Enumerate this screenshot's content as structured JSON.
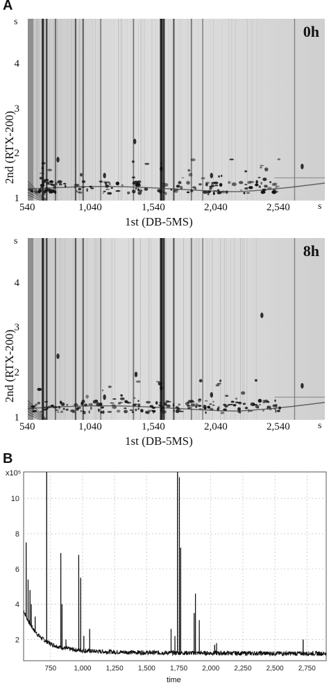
{
  "panel_a_label": "A",
  "panel_b_label": "B",
  "chart_data": [
    {
      "type": "heatmap",
      "panel": "A",
      "timepoint": "0h",
      "xlabel": "1st (DB-5MS)",
      "ylabel": "2nd (RTX-200)",
      "x_unit": "s",
      "y_unit": "s",
      "xlim": [
        540,
        2900
      ],
      "ylim": [
        1,
        5
      ],
      "x_ticks": [
        "540",
        "1,040",
        "1,540",
        "2,040",
        "2,540"
      ],
      "y_ticks": [
        "1",
        "2",
        "3",
        "4"
      ],
      "streaks": [
        [
          660,
          0.9
        ],
        [
          690,
          0.6
        ],
        [
          760,
          0.35
        ],
        [
          920,
          0.5
        ],
        [
          980,
          0.45
        ],
        [
          1120,
          0.25
        ],
        [
          1380,
          0.3
        ],
        [
          1600,
          1.0
        ],
        [
          1620,
          0.85
        ],
        [
          1700,
          0.5
        ],
        [
          1840,
          0.3
        ],
        [
          1930,
          0.2
        ],
        [
          2660,
          0.15
        ]
      ],
      "spots": [
        [
          1390,
          2.3
        ],
        [
          1600,
          1.7
        ],
        [
          2720,
          1.75
        ],
        [
          2000,
          1.55
        ],
        [
          1150,
          1.55
        ],
        [
          780,
          1.9
        ]
      ]
    },
    {
      "type": "heatmap",
      "panel": "A",
      "timepoint": "8h",
      "xlabel": "1st (DB-5MS)",
      "ylabel": "2nd (RTX-200)",
      "x_unit": "s",
      "y_unit": "s",
      "xlim": [
        540,
        2900
      ],
      "ylim": [
        1,
        5
      ],
      "x_ticks": [
        "540",
        "1,040",
        "1,540",
        "2,040",
        "2,540"
      ],
      "y_ticks": [
        "1",
        "2",
        "3",
        "4"
      ],
      "streaks": [
        [
          660,
          0.9
        ],
        [
          690,
          0.6
        ],
        [
          760,
          0.35
        ],
        [
          920,
          0.5
        ],
        [
          980,
          0.45
        ],
        [
          1120,
          0.25
        ],
        [
          1380,
          0.3
        ],
        [
          1600,
          1.0
        ],
        [
          1620,
          0.85
        ],
        [
          1700,
          0.5
        ],
        [
          1840,
          0.3
        ],
        [
          1930,
          0.2
        ],
        [
          2660,
          0.15
        ]
      ],
      "spots": [
        [
          1400,
          2.0
        ],
        [
          1600,
          1.7
        ],
        [
          2720,
          1.75
        ],
        [
          2000,
          1.55
        ],
        [
          1150,
          1.5
        ],
        [
          780,
          2.4
        ],
        [
          2400,
          3.3
        ]
      ]
    },
    {
      "type": "line",
      "panel": "B",
      "xlabel": "time",
      "ylabel": "",
      "y_scale_label": "x10⁵",
      "xlim": [
        540,
        2900
      ],
      "ylim": [
        0.8,
        11.5
      ],
      "x_ticks": [
        750,
        1000,
        1250,
        1500,
        1750,
        2000,
        2250,
        2500,
        2750
      ],
      "x_tick_labels": [
        "750",
        "1,000",
        "1,250",
        "1,500",
        "1,750",
        "2,000",
        "2,250",
        "2,500",
        "2,750"
      ],
      "y_ticks": [
        2,
        4,
        6,
        8,
        10
      ],
      "peaks": [
        [
          560,
          7.5
        ],
        [
          575,
          5.4
        ],
        [
          590,
          4.8
        ],
        [
          600,
          4.0
        ],
        [
          630,
          3.3
        ],
        [
          720,
          11.5
        ],
        [
          830,
          6.9
        ],
        [
          840,
          4.0
        ],
        [
          870,
          2.0
        ],
        [
          970,
          6.8
        ],
        [
          985,
          5.5
        ],
        [
          1010,
          2.2
        ],
        [
          1055,
          2.6
        ],
        [
          1300,
          1.3
        ],
        [
          1520,
          1.2
        ],
        [
          1690,
          2.6
        ],
        [
          1720,
          2.2
        ],
        [
          1740,
          11.5
        ],
        [
          1755,
          11.2
        ],
        [
          1765,
          7.2
        ],
        [
          1870,
          3.5
        ],
        [
          1880,
          4.6
        ],
        [
          1910,
          3.1
        ],
        [
          2030,
          1.7
        ],
        [
          2045,
          1.8
        ],
        [
          2720,
          2.0
        ]
      ]
    }
  ]
}
